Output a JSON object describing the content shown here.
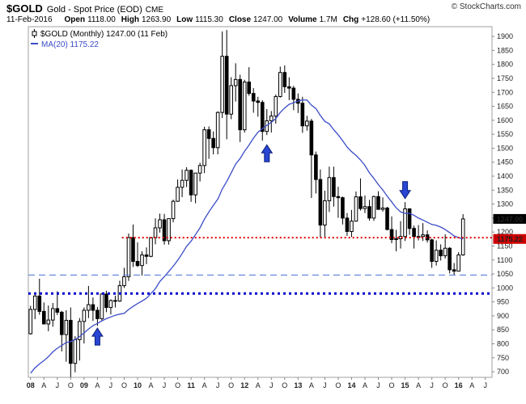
{
  "header": {
    "symbol": "$GOLD",
    "name": "Gold - Spot Price (EOD)",
    "exchange": "CME",
    "copyright": "© StockCharts.com",
    "date": "11-Feb-2016",
    "quote": [
      {
        "label": "Open",
        "value": "1118.00"
      },
      {
        "label": "High",
        "value": "1263.90"
      },
      {
        "label": "Low",
        "value": "1115.30"
      },
      {
        "label": "Close",
        "value": "1247.00"
      },
      {
        "label": "Volume",
        "value": "1.7M"
      },
      {
        "label": "Chg",
        "value": "+128.60 (+11.50%)"
      }
    ]
  },
  "legend": {
    "series_label": "$GOLD (Monthly) 1247.00 (11 Feb)",
    "ma_label": "MA(20) 1175.22"
  },
  "axis_labels": {
    "last_price": "1247.00",
    "ma_price": "1175.22"
  },
  "colors": {
    "ma_line": "#3b4cc8",
    "arrow_fill": "#2a46d4",
    "arrow_edge": "#0b1f7a",
    "last_price_box": "#000000",
    "ma_price_box": "#cc0000",
    "candle_up": "#ffffff",
    "candle_down": "#000000",
    "candle_outline": "#000000",
    "frame": "#a0a0a0"
  },
  "chart_data": {
    "type": "candlestick",
    "title": "$GOLD (Monthly) 1247.00 (11 Feb)",
    "period": "Monthly",
    "x_start": "2008-01",
    "x_slots": 104,
    "ylim": [
      680,
      1935
    ],
    "last_price": 1247.0,
    "ma_last": 1175.22,
    "yticks": [
      700,
      750,
      800,
      850,
      900,
      950,
      1000,
      1050,
      1100,
      1150,
      1200,
      1250,
      1300,
      1350,
      1400,
      1450,
      1500,
      1550,
      1600,
      1650,
      1700,
      1750,
      1800,
      1850,
      1900
    ],
    "xtick_step": 3,
    "xtick_labels": [
      "08",
      "A",
      "J",
      "O",
      "09",
      "A",
      "J",
      "O",
      "10",
      "A",
      "J",
      "O",
      "11",
      "A",
      "J",
      "O",
      "12",
      "A",
      "J",
      "O",
      "13",
      "A",
      "J",
      "O",
      "14",
      "A",
      "J",
      "O",
      "15",
      "A",
      "J",
      "O",
      "16",
      "A",
      "J"
    ],
    "ohlc": [
      [
        836,
        936,
        833,
        923
      ],
      [
        923,
        975,
        888,
        971
      ],
      [
        971,
        1033,
        904,
        916
      ],
      [
        916,
        948,
        871,
        871
      ],
      [
        871,
        937,
        845,
        885
      ],
      [
        885,
        946,
        861,
        926
      ],
      [
        926,
        988,
        903,
        913
      ],
      [
        913,
        918,
        773,
        833
      ],
      [
        833,
        920,
        736,
        884
      ],
      [
        884,
        930,
        681,
        730
      ],
      [
        730,
        827,
        698,
        815
      ],
      [
        815,
        892,
        740,
        880
      ],
      [
        880,
        930,
        801,
        920
      ],
      [
        920,
        1007,
        892,
        940
      ],
      [
        940,
        966,
        882,
        920
      ],
      [
        920,
        932,
        864,
        890
      ],
      [
        890,
        982,
        882,
        978
      ],
      [
        978,
        990,
        913,
        930
      ],
      [
        930,
        959,
        905,
        955
      ],
      [
        955,
        972,
        930,
        953
      ],
      [
        953,
        1026,
        950,
        1008
      ],
      [
        1008,
        1072,
        1000,
        1040
      ],
      [
        1040,
        1195,
        1025,
        1180
      ],
      [
        1180,
        1227,
        1075,
        1095
      ],
      [
        1095,
        1163,
        1075,
        1080
      ],
      [
        1080,
        1131,
        1044,
        1118
      ],
      [
        1118,
        1145,
        1085,
        1113
      ],
      [
        1113,
        1181,
        1110,
        1180
      ],
      [
        1180,
        1249,
        1156,
        1215
      ],
      [
        1215,
        1266,
        1198,
        1244
      ],
      [
        1244,
        1265,
        1155,
        1169
      ],
      [
        1169,
        1248,
        1155,
        1248
      ],
      [
        1248,
        1316,
        1235,
        1310
      ],
      [
        1310,
        1388,
        1308,
        1360
      ],
      [
        1360,
        1424,
        1325,
        1385
      ],
      [
        1385,
        1432,
        1361,
        1421
      ],
      [
        1421,
        1424,
        1308,
        1333
      ],
      [
        1333,
        1412,
        1303,
        1411
      ],
      [
        1411,
        1448,
        1381,
        1438
      ],
      [
        1438,
        1577,
        1411,
        1566
      ],
      [
        1566,
        1578,
        1462,
        1535
      ],
      [
        1535,
        1560,
        1478,
        1502
      ],
      [
        1502,
        1632,
        1478,
        1628
      ],
      [
        1628,
        1918,
        1608,
        1829
      ],
      [
        1829,
        1923,
        1532,
        1622
      ],
      [
        1622,
        1754,
        1604,
        1724
      ],
      [
        1724,
        1804,
        1667,
        1746
      ],
      [
        1746,
        1763,
        1522,
        1566
      ],
      [
        1566,
        1745,
        1556,
        1737
      ],
      [
        1737,
        1790,
        1688,
        1696
      ],
      [
        1696,
        1715,
        1627,
        1669
      ],
      [
        1669,
        1684,
        1613,
        1664
      ],
      [
        1664,
        1672,
        1527,
        1560
      ],
      [
        1560,
        1640,
        1547,
        1598
      ],
      [
        1598,
        1633,
        1556,
        1615
      ],
      [
        1615,
        1692,
        1588,
        1685
      ],
      [
        1685,
        1792,
        1681,
        1771
      ],
      [
        1771,
        1796,
        1698,
        1720
      ],
      [
        1720,
        1754,
        1672,
        1715
      ],
      [
        1715,
        1723,
        1636,
        1675
      ],
      [
        1675,
        1696,
        1626,
        1661
      ],
      [
        1661,
        1684,
        1555,
        1580
      ],
      [
        1580,
        1616,
        1563,
        1597
      ],
      [
        1597,
        1605,
        1322,
        1476
      ],
      [
        1476,
        1488,
        1338,
        1388
      ],
      [
        1388,
        1424,
        1180,
        1225
      ],
      [
        1225,
        1348,
        1180,
        1312
      ],
      [
        1312,
        1434,
        1272,
        1395
      ],
      [
        1395,
        1434,
        1291,
        1327
      ],
      [
        1327,
        1362,
        1251,
        1323
      ],
      [
        1323,
        1327,
        1227,
        1250
      ],
      [
        1250,
        1268,
        1186,
        1202
      ],
      [
        1202,
        1279,
        1182,
        1239
      ],
      [
        1239,
        1345,
        1237,
        1326
      ],
      [
        1326,
        1392,
        1277,
        1284
      ],
      [
        1284,
        1331,
        1268,
        1291
      ],
      [
        1291,
        1315,
        1241,
        1250
      ],
      [
        1250,
        1330,
        1240,
        1327
      ],
      [
        1327,
        1346,
        1281,
        1281
      ],
      [
        1281,
        1324,
        1273,
        1286
      ],
      [
        1286,
        1290,
        1206,
        1209
      ],
      [
        1209,
        1256,
        1160,
        1173
      ],
      [
        1173,
        1208,
        1131,
        1176
      ],
      [
        1176,
        1239,
        1141,
        1184
      ],
      [
        1184,
        1307,
        1168,
        1283
      ],
      [
        1283,
        1285,
        1190,
        1213
      ],
      [
        1213,
        1223,
        1141,
        1184
      ],
      [
        1184,
        1225,
        1170,
        1184
      ],
      [
        1184,
        1232,
        1168,
        1190
      ],
      [
        1190,
        1206,
        1162,
        1172
      ],
      [
        1172,
        1176,
        1072,
        1095
      ],
      [
        1095,
        1170,
        1080,
        1135
      ],
      [
        1135,
        1156,
        1098,
        1115
      ],
      [
        1115,
        1192,
        1105,
        1142
      ],
      [
        1142,
        1146,
        1052,
        1065
      ],
      [
        1065,
        1089,
        1046,
        1060
      ],
      [
        1060,
        1128,
        1060,
        1118
      ],
      [
        1118,
        1263.9,
        1115.3,
        1247
      ]
    ],
    "ma20": [
      695,
      714,
      728,
      740,
      754,
      771,
      784,
      794,
      805,
      808,
      815,
      826,
      839,
      853,
      865,
      873,
      882,
      890,
      896,
      902,
      906,
      909,
      923,
      934,
      944,
      953,
      963,
      980,
      997,
      1023,
      1040,
      1059,
      1078,
      1099,
      1123,
      1149,
      1167,
      1191,
      1215,
      1246,
      1272,
      1295,
      1318,
      1354,
      1381,
      1412,
      1443,
      1463,
      1489,
      1511,
      1536,
      1557,
      1570,
      1582,
      1593,
      1606,
      1628,
      1644,
      1657,
      1663,
      1669,
      1673,
      1672,
      1654,
      1642,
      1617,
      1596,
      1587,
      1566,
      1548,
      1527,
      1504,
      1488,
      1474,
      1458,
      1438,
      1412,
      1392,
      1370,
      1351,
      1328,
      1308,
      1287,
      1272,
      1267,
      1267,
      1260,
      1250,
      1243,
      1235,
      1227,
      1224,
      1218,
      1209,
      1198,
      1186,
      1180,
      1175.22
    ],
    "hlines": [
      {
        "name": "resistance-line",
        "value": 1180,
        "from_index": 21,
        "color": "#e00000",
        "width": 2,
        "dash": "2,3"
      },
      {
        "name": "support-line-dashed",
        "value": 1046,
        "from_index": 0,
        "color": "#4a6fd4",
        "width": 1,
        "dash": "8,5"
      },
      {
        "name": "support-line-dotted",
        "value": 980,
        "from_index": 0,
        "color": "#0000cd",
        "width": 3,
        "dash": "3,4"
      }
    ],
    "arrows": [
      {
        "direction": "up",
        "index": 15,
        "value": 856
      },
      {
        "direction": "up",
        "index": 53,
        "value": 1512
      },
      {
        "direction": "down",
        "index": 84,
        "value": 1320
      }
    ]
  }
}
